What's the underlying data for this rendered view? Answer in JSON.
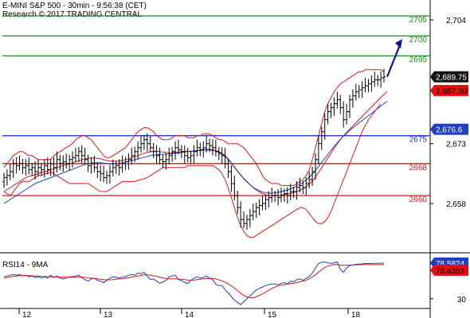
{
  "header": {
    "title": "E-MINI S&P 500 - 30min - 9:56:38 (CET)",
    "credit": "Research © 2017 TRADING CENTRAL"
  },
  "chart_data": [
    {
      "type": "candlestick",
      "subtype": "ohlc-bars-with-bollinger-bands",
      "title": "E-MINI S&P 500 - 30min - 9:56:38 (CET)",
      "x_ticks": [
        "12",
        "13",
        "14",
        "15",
        "18"
      ],
      "y_ticks": [
        2704,
        2673,
        2658
      ],
      "y_tick_labels": [
        "2,704",
        "2,673",
        "2,658"
      ],
      "ylim": [
        2643,
        2710
      ],
      "horizontal_levels": [
        {
          "value": 2705,
          "label": "2705",
          "color": "#1a8c1a",
          "kind": "resistance"
        },
        {
          "value": 2700,
          "label": "2700",
          "color": "#1a8c1a",
          "kind": "resistance"
        },
        {
          "value": 2695,
          "label": "2695",
          "color": "#1a8c1a",
          "kind": "resistance"
        },
        {
          "value": 2675,
          "label": "2675",
          "color": "#1f3ec0",
          "kind": "pivot"
        },
        {
          "value": 2668,
          "label": "2668",
          "color": "#d11a1a",
          "kind": "support"
        },
        {
          "value": 2660,
          "label": "2660",
          "color": "#d11a1a",
          "kind": "support"
        }
      ],
      "price_badges": [
        {
          "value": 2689.75,
          "label": "2,689.75",
          "bg": "#111111",
          "fg": "#ffffff"
        },
        {
          "value": 2687.3,
          "label": "2,687.30",
          "bg": "#e01010",
          "fg": "#000000"
        },
        {
          "value": 2676.6,
          "label": "2,676.6",
          "bg": "#1f3ec0",
          "fg": "#ffffff"
        }
      ],
      "close_series": [
        2664.5,
        2665,
        2666,
        2668,
        2667.5,
        2668,
        2667,
        2667.5,
        2666.5,
        2667,
        2666,
        2667,
        2666.5,
        2667.5,
        2666.5,
        2668,
        2667,
        2669,
        2668,
        2668.5,
        2668,
        2669,
        2669.5,
        2670,
        2671,
        2670,
        2669,
        2667.5,
        2668,
        2667,
        2666,
        2665.5,
        2664.5,
        2665,
        2666,
        2667,
        2667.5,
        2667,
        2668,
        2668.5,
        2669,
        2670,
        2671,
        2672,
        2673,
        2674,
        2673,
        2672,
        2671,
        2670,
        2669,
        2668.5,
        2669,
        2670,
        2671,
        2672,
        2671.5,
        2671,
        2670,
        2669.5,
        2670,
        2671,
        2672,
        2671.5,
        2672,
        2673,
        2672.5,
        2672,
        2671,
        2670.5,
        2670,
        2668,
        2666,
        2663,
        2660,
        2657,
        2654,
        2653,
        2654,
        2655,
        2656,
        2657,
        2657.5,
        2658,
        2659,
        2659.5,
        2660,
        2660,
        2659.5,
        2660,
        2660.5,
        2660,
        2661,
        2661,
        2662,
        2662.5,
        2662,
        2663,
        2664,
        2666,
        2669,
        2673,
        2676,
        2679,
        2681,
        2682,
        2683,
        2684,
        2682,
        2679,
        2681,
        2684,
        2685,
        2686,
        2686.5,
        2687,
        2687.5,
        2688,
        2688.5,
        2689,
        2689,
        2689.5,
        2689.75
      ],
      "bollinger_upper_series": [
        2667,
        2668,
        2669,
        2670,
        2670.5,
        2671,
        2671,
        2670.5,
        2670,
        2670,
        2669.5,
        2669,
        2669,
        2669,
        2669,
        2669,
        2670,
        2670.5,
        2671,
        2671.5,
        2672,
        2672.5,
        2673,
        2674,
        2674.5,
        2675,
        2675,
        2674.5,
        2674,
        2673,
        2672,
        2671,
        2670,
        2669.5,
        2669.5,
        2670,
        2670.5,
        2671,
        2671.5,
        2672,
        2673,
        2674,
        2675,
        2676,
        2676.5,
        2677,
        2677,
        2676.5,
        2676,
        2675,
        2674.5,
        2674,
        2674,
        2674,
        2674.5,
        2675,
        2675,
        2675,
        2675,
        2674.5,
        2674.5,
        2674.5,
        2675,
        2675,
        2675.5,
        2675.5,
        2675.5,
        2675,
        2674.5,
        2674,
        2674,
        2673.5,
        2673,
        2673,
        2673,
        2673,
        2672.5,
        2672,
        2671,
        2670,
        2669,
        2668,
        2666.5,
        2665,
        2664,
        2663.5,
        2663,
        2663,
        2663,
        2662.5,
        2662.5,
        2662.5,
        2662.5,
        2662.5,
        2663,
        2663.5,
        2664,
        2665,
        2666.5,
        2669,
        2672,
        2675,
        2678,
        2681,
        2683,
        2684.5,
        2686,
        2687,
        2688,
        2688.5,
        2689,
        2689.5,
        2690,
        2690.5,
        2691,
        2691,
        2691.5,
        2691.5,
        2691.5,
        2691.5,
        2691.5,
        2691.5,
        2691
      ],
      "bollinger_middle_series": [
        2661,
        2661.5,
        2662,
        2662.5,
        2663,
        2663.5,
        2664,
        2664.5,
        2664.8,
        2665,
        2665.2,
        2665.5,
        2665.8,
        2666,
        2666.2,
        2666.5,
        2666.7,
        2667,
        2667.2,
        2667.5,
        2667.7,
        2668,
        2668.2,
        2668.5,
        2668.7,
        2669,
        2669.2,
        2669.3,
        2669.4,
        2669.4,
        2669.3,
        2669.2,
        2669,
        2668.8,
        2668.7,
        2668.6,
        2668.6,
        2668.7,
        2668.8,
        2669,
        2669.2,
        2669.5,
        2669.8,
        2670,
        2670.3,
        2670.6,
        2670.8,
        2671,
        2671.1,
        2671.1,
        2671,
        2670.9,
        2670.8,
        2670.7,
        2670.7,
        2670.8,
        2670.9,
        2671,
        2671.1,
        2671.1,
        2671.1,
        2671.2,
        2671.3,
        2671.4,
        2671.5,
        2671.6,
        2671.6,
        2671.5,
        2671.3,
        2671,
        2670.6,
        2670,
        2669.2,
        2668.2,
        2667.2,
        2666.2,
        2665.2,
        2664.3,
        2663.5,
        2662.7,
        2662,
        2661.4,
        2660.9,
        2660.5,
        2660.2,
        2660,
        2659.9,
        2659.9,
        2660,
        2660.1,
        2660.2,
        2660.4,
        2660.6,
        2660.8,
        2661,
        2661.3,
        2661.7,
        2662.2,
        2662.8,
        2663.6,
        2664.6,
        2665.8,
        2667,
        2668.2,
        2669.4,
        2670.6,
        2671.8,
        2673,
        2674,
        2675,
        2675.8,
        2676.6,
        2677.4,
        2678.2,
        2679,
        2679.8,
        2680.6,
        2681.4,
        2682.2,
        2683,
        2683.8,
        2684.6,
        2685.3,
        2686
      ],
      "bollinger_lower_series": [
        2661,
        2660.5,
        2660,
        2661,
        2662,
        2663,
        2663.5,
        2663.5,
        2663.5,
        2664,
        2664.5,
        2665,
        2665,
        2665.5,
        2665.5,
        2666,
        2665.5,
        2665,
        2664.5,
        2664,
        2663.5,
        2663,
        2663,
        2663,
        2663,
        2663,
        2663,
        2663,
        2662.5,
        2662,
        2661.5,
        2661,
        2661,
        2661,
        2661.5,
        2662,
        2662.5,
        2663,
        2663.5,
        2663.5,
        2663.5,
        2663.5,
        2663.5,
        2663.8,
        2664,
        2664.2,
        2664.5,
        2665,
        2665.5,
        2666,
        2666.5,
        2667,
        2667,
        2667,
        2667,
        2667,
        2667,
        2667,
        2667,
        2667.5,
        2667.5,
        2667.5,
        2667.5,
        2667.5,
        2667.5,
        2667.5,
        2667.5,
        2667.5,
        2667,
        2666.5,
        2665.5,
        2664,
        2662,
        2659.5,
        2657,
        2654.5,
        2652.5,
        2651,
        2650,
        2649.5,
        2649.5,
        2650,
        2650.5,
        2651,
        2651.5,
        2652,
        2652.5,
        2653,
        2653.5,
        2654,
        2654.5,
        2655,
        2655.5,
        2656,
        2656.5,
        2657,
        2657,
        2656.5,
        2655.5,
        2654.5,
        2653.5,
        2653,
        2653,
        2653.5,
        2654.5,
        2656,
        2658,
        2660,
        2662,
        2664,
        2666,
        2668,
        2670,
        2672,
        2674,
        2676,
        2677.5,
        2679,
        2680,
        2681,
        2682,
        2683
      ],
      "moving_average_series": [
        2658,
        2658.5,
        2659,
        2659.5,
        2660,
        2660.5,
        2661,
        2661.5,
        2662,
        2662.5,
        2663,
        2663.3,
        2663.6,
        2663.9,
        2664.2,
        2664.5,
        2664.8,
        2665.1,
        2665.4,
        2665.7,
        2666,
        2666.3,
        2666.6,
        2666.9,
        2667.2,
        2667.5,
        2667.8,
        2668,
        2668.1,
        2668.2,
        2668.2,
        2668.2,
        2668.1,
        2668,
        2667.9,
        2667.9,
        2668,
        2668.1,
        2668.2,
        2668.4,
        2668.6,
        2668.8,
        2669,
        2669.2,
        2669.4,
        2669.6,
        2669.8,
        2670,
        2670.1,
        2670.2,
        2670.3,
        2670.3,
        2670.4,
        2670.4,
        2670.5,
        2670.6,
        2670.7,
        2670.8,
        2670.9,
        2671,
        2671,
        2671.1,
        2671.2,
        2671.3,
        2671.4,
        2671.4,
        2671.4,
        2671.3,
        2671.1,
        2670.8,
        2670.4,
        2669.8,
        2669,
        2668.1,
        2667.1,
        2666.1,
        2665.1,
        2664.2,
        2663.4,
        2662.7,
        2662.1,
        2661.6,
        2661.2,
        2660.9,
        2660.7,
        2660.6,
        2660.6,
        2660.7,
        2660.8,
        2661,
        2661.2,
        2661.4,
        2661.7,
        2662,
        2662.4,
        2662.8,
        2663.3,
        2663.9,
        2664.6,
        2665.4,
        2666.3,
        2667.3,
        2668.3,
        2669.3,
        2670.3,
        2671.3,
        2672.3,
        2673.2,
        2674.1,
        2674.9,
        2675.6,
        2676.3,
        2677,
        2677.6,
        2678.2,
        2678.8,
        2679.4,
        2680,
        2680.6,
        2681.2,
        2681.8,
        2682.4,
        2683,
        2683.6
      ],
      "projection_arrow": {
        "from_value": 2689.75,
        "to_value": 2700,
        "color": "#0a1a8c"
      }
    },
    {
      "type": "line",
      "title": "RSI14 - 9MA",
      "y_ticks": [
        30
      ],
      "y_tick_labels": [
        "30"
      ],
      "ylim": [
        20,
        85
      ],
      "price_badges": [
        {
          "value": 78.5824,
          "label": "78.5824",
          "bg": "#1f3ec0",
          "fg": "#ffffff"
        },
        {
          "value": 76.4353,
          "label": "76.4353",
          "bg": "#e01010",
          "fg": "#000000"
        }
      ],
      "series": [
        {
          "name": "RSI14",
          "color": "#1f3ec0",
          "values": [
            60,
            61,
            62,
            63,
            62,
            63,
            61,
            62,
            60,
            61,
            59,
            60,
            58,
            60,
            58,
            62,
            59,
            61,
            58,
            57,
            58,
            60,
            60,
            61,
            62,
            59,
            56,
            54,
            57,
            58,
            55,
            54,
            52,
            55,
            58,
            60,
            59,
            58,
            60,
            60,
            62,
            63,
            62,
            65,
            64,
            66,
            61,
            56,
            57,
            54,
            51,
            53,
            55,
            60,
            61,
            62,
            56,
            55,
            52,
            51,
            55,
            58,
            60,
            58,
            59,
            61,
            58,
            56,
            50,
            48,
            48,
            42,
            38,
            33,
            28,
            25,
            22,
            26,
            30,
            34,
            38,
            42,
            44,
            46,
            48,
            49,
            50,
            50,
            49,
            51,
            52,
            50,
            54,
            53,
            56,
            57,
            55,
            58,
            60,
            65,
            72,
            78,
            80,
            80,
            79,
            78,
            79,
            80,
            70,
            66,
            72,
            75,
            76,
            77,
            77,
            77.5,
            78,
            78,
            78,
            78.2,
            78.3,
            78.4,
            78.58
          ]
        },
        {
          "name": "9MA",
          "color": "#d11a1a",
          "values": [
            58,
            59,
            60,
            60.5,
            61,
            61.5,
            61.5,
            61.5,
            61.5,
            61.3,
            61,
            60.8,
            60.5,
            60.3,
            60,
            60,
            59.8,
            59.8,
            59.5,
            59.5,
            59.3,
            59.2,
            59.2,
            59.5,
            59.8,
            59.5,
            59,
            58.5,
            58,
            57.5,
            57,
            56.5,
            56,
            55.8,
            55.8,
            56,
            56.5,
            57,
            57.5,
            58,
            58.5,
            59.5,
            60.3,
            61,
            61.8,
            62.5,
            62.5,
            62,
            61.5,
            60.5,
            59.5,
            58.5,
            57.5,
            57,
            57,
            57,
            56.8,
            56.5,
            56,
            55.5,
            55.3,
            55.5,
            56,
            56.5,
            57,
            57.5,
            57.8,
            57.8,
            57,
            55.8,
            54.3,
            52.5,
            50.2,
            47.5,
            44.5,
            41,
            37.5,
            34.5,
            32.5,
            31.5,
            31.5,
            32.5,
            34.5,
            36.5,
            39,
            41.5,
            44,
            46,
            47.5,
            48.5,
            49.3,
            49.8,
            50.5,
            51,
            52,
            53,
            54,
            55.3,
            57,
            59.5,
            62.5,
            66,
            69.5,
            72.5,
            74.5,
            75.8,
            76.5,
            76.5,
            75.8,
            75.5,
            75.5,
            75.8,
            76,
            76.2,
            76.3,
            76.4,
            76.4,
            76.4,
            76.4,
            76.4,
            76.4,
            76.4,
            76.44
          ]
        }
      ]
    }
  ]
}
